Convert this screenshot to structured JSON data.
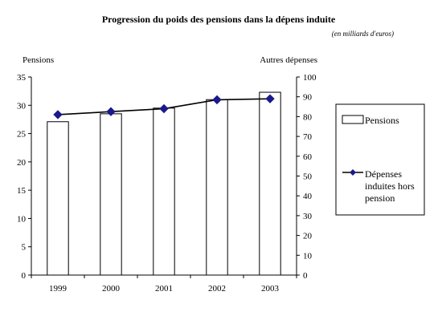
{
  "chart_data": {
    "type": "bar+line",
    "title": "Progression du poids des pensions dans  la dépens induite",
    "subtitle": "(en milliards d'euros)",
    "categories": [
      "1999",
      "2000",
      "2001",
      "2002",
      "2003"
    ],
    "y_left": {
      "label": "Pensions",
      "min": 0,
      "max": 35,
      "ticks": [
        "0",
        "5",
        "10",
        "15",
        "20",
        "25",
        "30",
        "35"
      ]
    },
    "y_right": {
      "label": "Autres dépenses",
      "min": 0,
      "max": 100,
      "ticks": [
        "0",
        "10",
        "20",
        "30",
        "40",
        "50",
        "60",
        "70",
        "80",
        "90",
        "100"
      ]
    },
    "series": [
      {
        "name": "Pensions",
        "kind": "bar",
        "axis": "left",
        "values": [
          27.1,
          28.5,
          29.5,
          31.0,
          32.3
        ]
      },
      {
        "name_lines": [
          "Dépenses",
          "induites hors",
          "pension"
        ],
        "kind": "line",
        "axis": "right",
        "values": [
          81,
          82.5,
          84,
          88.5,
          89
        ]
      }
    ],
    "legend_position": "right",
    "grid": false,
    "colors": {
      "bar_fill": "#ffffff",
      "bar_stroke": "#000000",
      "line": "#000000",
      "marker": "#1a1a8c"
    }
  }
}
